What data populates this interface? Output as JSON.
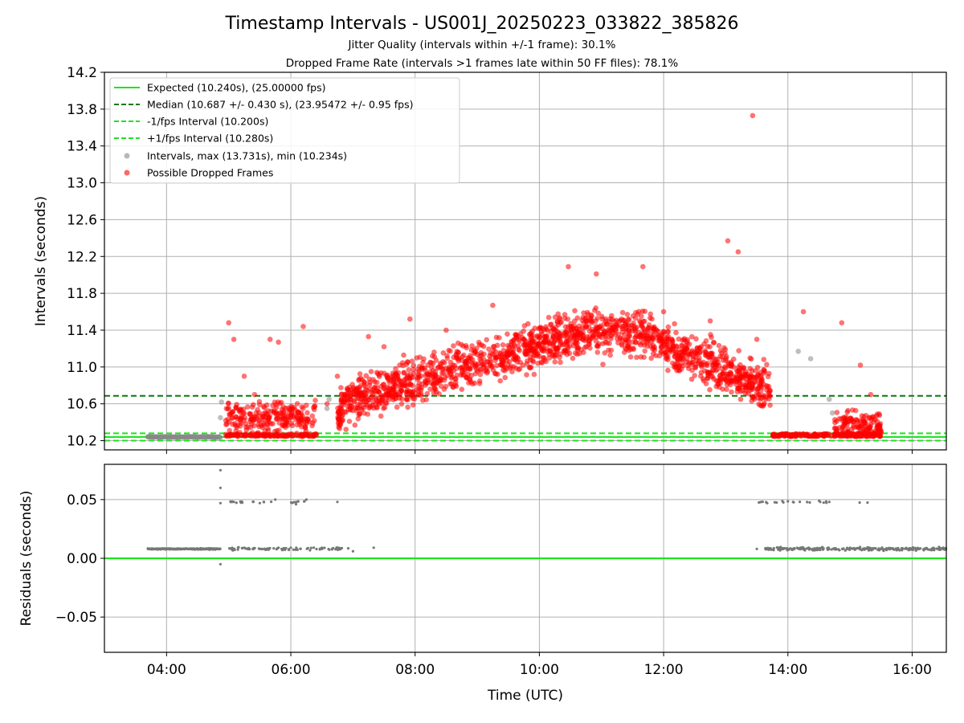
{
  "title": "Timestamp Intervals - US001J_20250223_033822_385826",
  "subtitle1": "Jitter Quality (intervals within +/-1 frame): 30.1%",
  "subtitle2": "Dropped Frame Rate (intervals >1 frames late within 50 FF files): 78.1%",
  "chart_data": [
    {
      "type": "scatter",
      "panel": "intervals",
      "ylabel": "Intervals (seconds)",
      "xlabel": "",
      "xlim": [
        "03:00",
        "16:33"
      ],
      "ylim": [
        10.1,
        14.2
      ],
      "grid": true,
      "legend_position": "top-left",
      "x_tick_labels": [
        "04:00",
        "06:00",
        "08:00",
        "10:00",
        "12:00",
        "14:00",
        "16:00"
      ],
      "y_tick_labels": [
        "10.2",
        "10.6",
        "11.0",
        "11.4",
        "11.8",
        "12.2",
        "12.6",
        "13.0",
        "13.4",
        "13.8",
        "14.2"
      ],
      "reference_lines": [
        {
          "name": "Expected (10.240s), (25.00000 fps)",
          "y": 10.24,
          "style": "solid",
          "color": "#1ee31e"
        },
        {
          "name": "Median (10.687 +/- 0.430 s), (23.95472 +/- 0.95 fps)",
          "y": 10.687,
          "style": "dashed",
          "color": "#0a7a0a"
        },
        {
          "name": "-1/fps Interval (10.200s)",
          "y": 10.2,
          "style": "dashed",
          "color": "#1ee31e"
        },
        {
          "name": "+1/fps Interval (10.280s)",
          "y": 10.28,
          "style": "dashed",
          "color": "#1ee31e"
        }
      ],
      "series": [
        {
          "name": "Intervals, max (13.731s), min (10.234s)",
          "color": "#888888",
          "points": [
            [
              "03:42",
              10.24
            ],
            [
              "03:55",
              10.24
            ],
            [
              "04:10",
              10.24
            ],
            [
              "04:25",
              10.24
            ],
            [
              "04:40",
              10.24
            ],
            [
              "04:52",
              10.45
            ],
            [
              "04:53",
              10.62
            ],
            [
              "06:35",
              10.55
            ],
            [
              "06:37",
              10.65
            ],
            [
              "14:10",
              11.17
            ],
            [
              "14:22",
              11.09
            ],
            [
              "14:40",
              10.65
            ],
            [
              "14:43",
              10.5
            ],
            [
              "15:10",
              10.3
            ]
          ]
        },
        {
          "name": "Possible Dropped Frames",
          "color": "#ff0000",
          "points": [
            [
              "05:00",
              11.48
            ],
            [
              "05:05",
              11.3
            ],
            [
              "05:15",
              10.9
            ],
            [
              "05:25",
              10.7
            ],
            [
              "05:40",
              11.3
            ],
            [
              "05:48",
              11.27
            ],
            [
              "06:12",
              11.44
            ],
            [
              "06:35",
              10.6
            ],
            [
              "06:45",
              10.9
            ],
            [
              "07:15",
              11.33
            ],
            [
              "07:30",
              11.22
            ],
            [
              "07:55",
              11.52
            ],
            [
              "08:30",
              11.4
            ],
            [
              "09:15",
              11.67
            ],
            [
              "09:45",
              11.3
            ],
            [
              "10:28",
              12.09
            ],
            [
              "10:55",
              12.01
            ],
            [
              "11:40",
              12.09
            ],
            [
              "12:00",
              11.6
            ],
            [
              "12:45",
              11.5
            ],
            [
              "13:02",
              12.37
            ],
            [
              "13:12",
              12.25
            ],
            [
              "13:26",
              13.73
            ],
            [
              "13:30",
              11.3
            ],
            [
              "14:15",
              11.6
            ],
            [
              "14:52",
              11.48
            ],
            [
              "15:10",
              11.02
            ],
            [
              "15:20",
              10.7
            ],
            [
              "15:30",
              10.3
            ]
          ]
        }
      ]
    },
    {
      "type": "scatter",
      "panel": "residuals",
      "ylabel": "Residuals (seconds)",
      "xlabel": "Time (UTC)",
      "xlim": [
        "03:00",
        "16:33"
      ],
      "ylim": [
        -0.08,
        0.08
      ],
      "grid": true,
      "x_tick_labels": [
        "04:00",
        "06:00",
        "08:00",
        "10:00",
        "12:00",
        "14:00",
        "16:00"
      ],
      "y_tick_labels": [
        "0.05",
        "0.00",
        "−0.05"
      ],
      "reference_lines": [
        {
          "y": 0.0,
          "style": "solid",
          "color": "#1ee31e"
        }
      ],
      "series": [
        {
          "color": "#777777",
          "points": [
            [
              "03:42",
              0.008
            ],
            [
              "04:00",
              0.008
            ],
            [
              "04:20",
              0.008
            ],
            [
              "04:40",
              0.008
            ],
            [
              "04:52",
              0.075
            ],
            [
              "04:52",
              0.06
            ],
            [
              "04:52",
              0.047
            ],
            [
              "04:52",
              -0.005
            ],
            [
              "05:05",
              0.048
            ],
            [
              "05:15",
              0.009
            ],
            [
              "05:30",
              0.047
            ],
            [
              "05:45",
              0.05
            ],
            [
              "06:00",
              0.009
            ],
            [
              "06:05",
              0.046
            ],
            [
              "06:15",
              0.05
            ],
            [
              "06:30",
              0.009
            ],
            [
              "06:45",
              0.048
            ],
            [
              "07:00",
              0.006
            ],
            [
              "07:20",
              0.009
            ],
            [
              "13:30",
              0.008
            ],
            [
              "13:40",
              0.047
            ],
            [
              "13:55",
              0.008
            ],
            [
              "14:05",
              0.048
            ],
            [
              "14:20",
              0.009
            ],
            [
              "14:40",
              0.048
            ],
            [
              "15:00",
              0.009
            ],
            [
              "15:30",
              0.008
            ],
            [
              "16:00",
              0.008
            ],
            [
              "16:30",
              0.009
            ]
          ]
        }
      ]
    }
  ]
}
